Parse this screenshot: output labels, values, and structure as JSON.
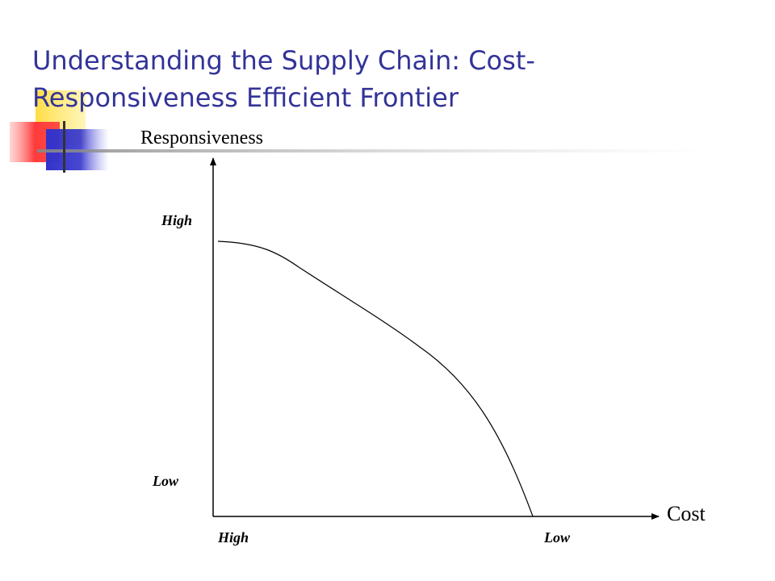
{
  "slide": {
    "title": "Understanding the Supply Chain: Cost-Responsiveness Efficient Frontier"
  },
  "diagram": {
    "y_axis": {
      "title": "Responsiveness",
      "high_label": "High",
      "low_label": "Low"
    },
    "x_axis": {
      "title": "Cost",
      "high_label": "High",
      "low_label": "Low"
    },
    "curve": "efficient-frontier"
  },
  "colors": {
    "title": "#333399",
    "deco_yellow": "#ffdd44",
    "deco_red": "#ff3b3b",
    "deco_blue": "#3333cc",
    "axis": "#000000"
  }
}
